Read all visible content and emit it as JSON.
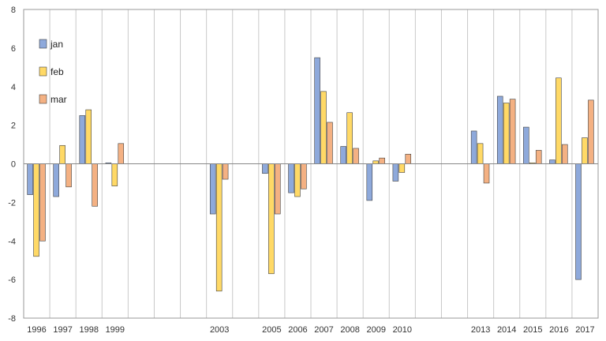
{
  "chart_data": {
    "type": "bar",
    "categories": [
      "1996",
      "1997",
      "1998",
      "1999",
      "",
      "",
      "",
      "2003",
      "",
      "2005",
      "2006",
      "2007",
      "2008",
      "2009",
      "2010",
      "",
      "",
      "2013",
      "2014",
      "2015",
      "2016",
      "2017"
    ],
    "series": [
      {
        "name": "jan",
        "color": "#8EA9DB",
        "values": [
          -1.6,
          -1.7,
          2.5,
          0.05,
          null,
          null,
          null,
          -2.6,
          null,
          -0.5,
          -1.5,
          5.5,
          0.9,
          -1.9,
          -0.9,
          null,
          null,
          1.7,
          3.5,
          1.9,
          0.2,
          -6.0
        ]
      },
      {
        "name": "feb",
        "color": "#FFD966",
        "values": [
          -4.8,
          0.95,
          2.8,
          -1.15,
          null,
          null,
          null,
          -6.6,
          null,
          -5.7,
          -1.7,
          3.75,
          2.65,
          0.15,
          -0.45,
          null,
          null,
          1.05,
          3.15,
          0.05,
          4.45,
          1.35
        ]
      },
      {
        "name": "mar",
        "color": "#F4B183",
        "values": [
          -4.0,
          -1.2,
          -2.2,
          1.05,
          null,
          null,
          null,
          -0.8,
          null,
          -2.6,
          -1.3,
          2.15,
          0.8,
          0.3,
          0.5,
          null,
          null,
          -1.0,
          3.35,
          0.7,
          1.0,
          3.3
        ]
      }
    ],
    "ylim": [
      -8,
      8
    ],
    "yticks": [
      "-8",
      "-6",
      "-4",
      "-2",
      "0",
      "2",
      "4",
      "6",
      "8"
    ],
    "grid": true,
    "legend_position": "top-left",
    "title": "",
    "xlabel": "",
    "ylabel": ""
  }
}
